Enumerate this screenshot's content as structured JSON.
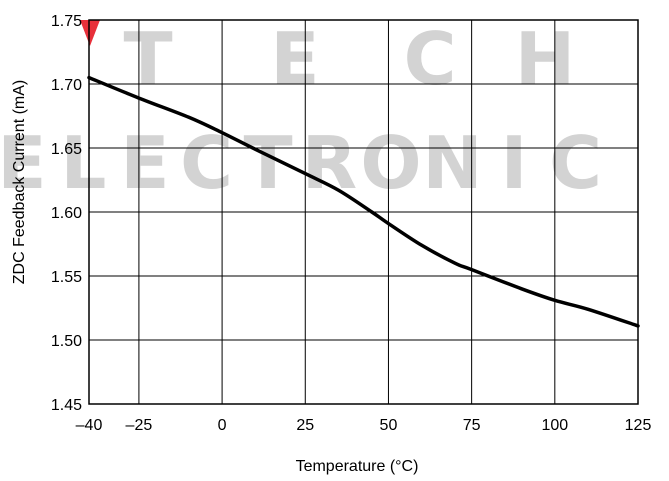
{
  "chart_data": {
    "type": "line",
    "title": "",
    "xlabel": "Temperature (°C)",
    "ylabel": "ZDC Feedback Current (mA)",
    "xlim": [
      -40,
      125
    ],
    "ylim": [
      1.45,
      1.75
    ],
    "xticks": [
      -40,
      -25,
      0,
      25,
      50,
      75,
      100,
      125
    ],
    "xtick_labels": [
      "–40",
      "–25",
      "0",
      "25",
      "50",
      "75",
      "100",
      "125"
    ],
    "yticks": [
      1.45,
      1.5,
      1.55,
      1.6,
      1.65,
      1.7,
      1.75
    ],
    "ytick_labels": [
      "1.45",
      "1.50",
      "1.55",
      "1.60",
      "1.65",
      "1.70",
      "1.75"
    ],
    "grid": true,
    "series": [
      {
        "color": "#000000",
        "x": [
          -40,
          -25,
          -10,
          0,
          10,
          25,
          35,
          45,
          50,
          60,
          70,
          75,
          90,
          100,
          110,
          125
        ],
        "y": [
          1.705,
          1.689,
          1.674,
          1.662,
          1.649,
          1.63,
          1.617,
          1.6,
          1.591,
          1.574,
          1.56,
          1.555,
          1.54,
          1.531,
          1.524,
          1.511
        ]
      }
    ]
  },
  "watermark": {
    "line1": "TECH",
    "line2": "ELECTRONIC",
    "color": "#d3d3d3",
    "accent_color": "#e8303a"
  }
}
